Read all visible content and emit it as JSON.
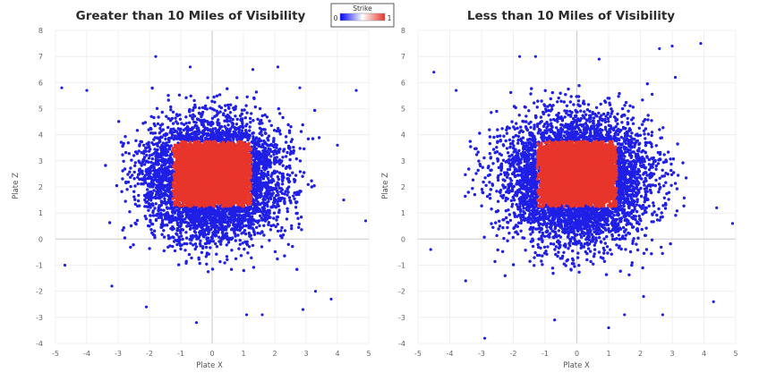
{
  "chart_data": [
    {
      "type": "scatter",
      "title": "Greater than 10 Miles of Visibility",
      "xlabel": "Plate X",
      "ylabel": "Plate Z",
      "xlim": [
        -5,
        5
      ],
      "ylim": [
        -4,
        8
      ],
      "xticks": [
        "-5",
        "-4",
        "-3",
        "-2",
        "-1",
        "0",
        "1",
        "2",
        "3",
        "4",
        "5"
      ],
      "yticks": [
        "-4",
        "-3",
        "-2",
        "-1",
        "0",
        "1",
        "2",
        "3",
        "4",
        "5",
        "6",
        "7",
        "8"
      ],
      "grid": true,
      "series": [
        {
          "category": "ball",
          "strike": 0,
          "color": "#1f1fe6",
          "distribution": {
            "center_x": 0.0,
            "center_z": 2.3,
            "spread_x": 1.05,
            "spread_z": 1.1,
            "approx_x_range": [
              -3.5,
              3.5
            ],
            "approx_z_range": [
              -1.5,
              5.8
            ]
          },
          "outlier_points": [
            {
              "x": -4.8,
              "y": 5.8
            },
            {
              "x": -4.0,
              "y": 5.7
            },
            {
              "x": -1.8,
              "y": 7.0
            },
            {
              "x": -0.7,
              "y": 6.6
            },
            {
              "x": 1.3,
              "y": 6.5
            },
            {
              "x": 2.1,
              "y": 6.6
            },
            {
              "x": 2.8,
              "y": 5.8
            },
            {
              "x": 4.6,
              "y": 5.7
            },
            {
              "x": 4.0,
              "y": 3.6
            },
            {
              "x": 4.2,
              "y": 1.5
            },
            {
              "x": 4.9,
              "y": 0.7
            },
            {
              "x": -4.7,
              "y": -1.0
            },
            {
              "x": -3.2,
              "y": -1.8
            },
            {
              "x": -0.5,
              "y": -3.2
            },
            {
              "x": 1.1,
              "y": -2.9
            },
            {
              "x": 1.6,
              "y": -2.9
            },
            {
              "x": 2.9,
              "y": -2.7
            },
            {
              "x": 3.8,
              "y": -2.3
            },
            {
              "x": -2.1,
              "y": -2.6
            },
            {
              "x": 3.3,
              "y": -2.0
            }
          ]
        },
        {
          "category": "strike",
          "strike": 1,
          "color": "#e8352b",
          "distribution": {
            "x_range": [
              -1.25,
              1.25
            ],
            "z_range": [
              1.25,
              3.75
            ]
          }
        }
      ]
    },
    {
      "type": "scatter",
      "title": "Less than 10 Miles of Visibility",
      "xlabel": "Plate X",
      "ylabel": "Plate Z",
      "xlim": [
        -5,
        5
      ],
      "ylim": [
        -4,
        8
      ],
      "xticks": [
        "-5",
        "-4",
        "-3",
        "-2",
        "-1",
        "0",
        "1",
        "2",
        "3",
        "4",
        "5"
      ],
      "yticks": [
        "-4",
        "-3",
        "-2",
        "-1",
        "0",
        "1",
        "2",
        "3",
        "4",
        "5",
        "6",
        "7",
        "8"
      ],
      "grid": true,
      "series": [
        {
          "category": "ball",
          "strike": 0,
          "color": "#1f1fe6",
          "distribution": {
            "center_x": 0.0,
            "center_z": 2.3,
            "spread_x": 1.1,
            "spread_z": 1.15,
            "approx_x_range": [
              -3.6,
              3.6
            ],
            "approx_z_range": [
              -1.6,
              6.0
            ]
          },
          "outlier_points": [
            {
              "x": -4.5,
              "y": 6.4
            },
            {
              "x": -3.8,
              "y": 5.7
            },
            {
              "x": -1.8,
              "y": 7.0
            },
            {
              "x": -1.3,
              "y": 7.0
            },
            {
              "x": 0.7,
              "y": 6.9
            },
            {
              "x": 2.6,
              "y": 7.3
            },
            {
              "x": 3.0,
              "y": 7.4
            },
            {
              "x": 3.9,
              "y": 7.5
            },
            {
              "x": 3.1,
              "y": 6.2
            },
            {
              "x": 4.4,
              "y": 1.2
            },
            {
              "x": 4.9,
              "y": 0.6
            },
            {
              "x": -4.6,
              "y": -0.4
            },
            {
              "x": -2.9,
              "y": -3.8
            },
            {
              "x": -0.7,
              "y": -3.1
            },
            {
              "x": 1.0,
              "y": -3.4
            },
            {
              "x": 1.5,
              "y": -2.9
            },
            {
              "x": 2.7,
              "y": -2.9
            },
            {
              "x": 4.3,
              "y": -2.4
            },
            {
              "x": -3.5,
              "y": -1.6
            },
            {
              "x": 2.1,
              "y": -2.2
            }
          ]
        },
        {
          "category": "strike",
          "strike": 1,
          "color": "#e8352b",
          "distribution": {
            "x_range": [
              -1.25,
              1.25
            ],
            "z_range": [
              1.25,
              3.75
            ]
          }
        }
      ]
    }
  ],
  "legend": {
    "title": "Strike",
    "min_label": "0",
    "max_label": "1",
    "color_low": "#0000ff",
    "color_mid": "#ffffff",
    "color_high": "#e8352b",
    "placement": "top-center"
  }
}
